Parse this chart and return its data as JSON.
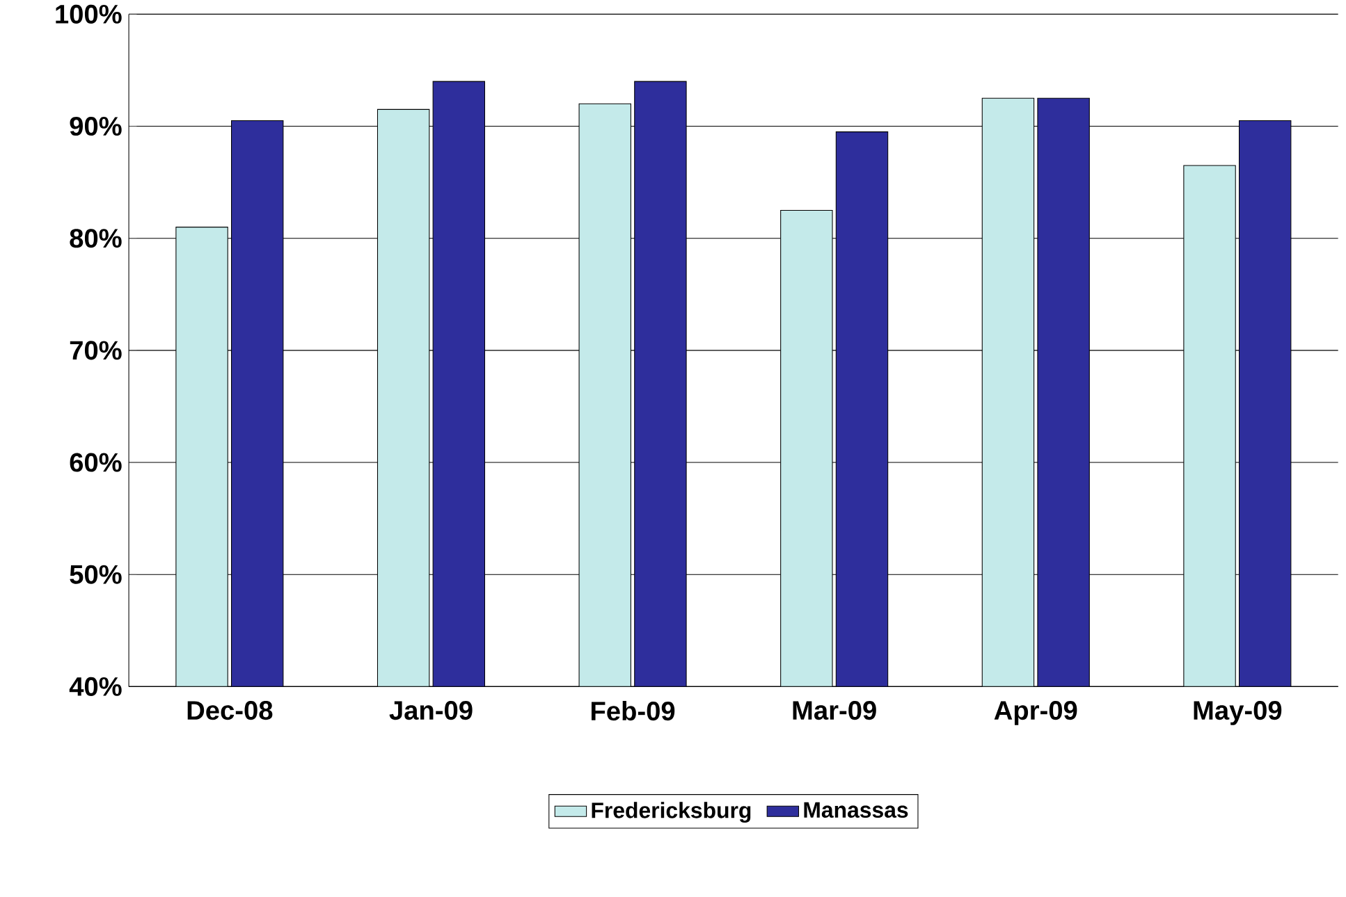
{
  "chart_data": {
    "type": "bar",
    "categories": [
      "Dec-08",
      "Jan-09",
      "Feb-09",
      "Mar-09",
      "Apr-09",
      "May-09"
    ],
    "series": [
      {
        "name": "Fredericksburg",
        "color": "#c4eaea",
        "values": [
          81,
          91.5,
          92,
          82.5,
          92.5,
          86.5
        ]
      },
      {
        "name": "Manassas",
        "color": "#2e2e9c",
        "values": [
          90.5,
          94,
          94,
          89.5,
          92.5,
          90.5
        ]
      }
    ],
    "ylim": [
      40,
      100
    ],
    "yticks": [
      {
        "value": 40,
        "label": "40%"
      },
      {
        "value": 50,
        "label": "50%"
      },
      {
        "value": 60,
        "label": "60%"
      },
      {
        "value": 70,
        "label": "70%"
      },
      {
        "value": 80,
        "label": "80%"
      },
      {
        "value": 90,
        "label": "90%"
      },
      {
        "value": 100,
        "label": "100%"
      }
    ],
    "grid": "y",
    "legend": "bottom"
  }
}
